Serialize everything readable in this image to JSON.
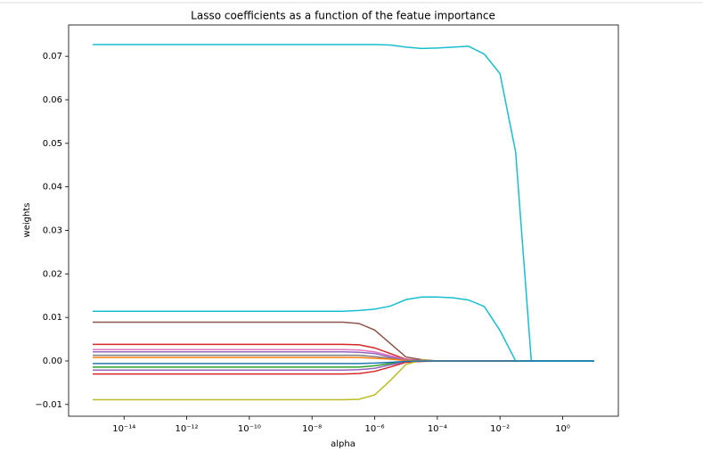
{
  "chart_data": {
    "type": "line",
    "title": "Lasso coefficients as a function of the featue importance",
    "x_label": "alpha",
    "y_label": "weights",
    "xscale": "log",
    "x": [
      1e-15,
      3.16e-15,
      1e-14,
      3.16e-14,
      1e-13,
      3.16e-13,
      1e-12,
      3.16e-12,
      1e-11,
      3.16e-11,
      1e-10,
      3.16e-10,
      1e-09,
      3.16e-09,
      1e-08,
      3.16e-08,
      1e-07,
      3.16e-07,
      1e-06,
      3.16e-06,
      1e-05,
      3.16e-05,
      0.0001,
      0.000316,
      0.001,
      0.00316,
      0.01,
      0.0316,
      0.1,
      0.316,
      1,
      3.16,
      10
    ],
    "xlim": [
      1.7e-16,
      60
    ],
    "xticks": [
      {
        "value": 1e-14,
        "label": "10⁻¹⁴"
      },
      {
        "value": 1e-12,
        "label": "10⁻¹²"
      },
      {
        "value": 1e-10,
        "label": "10⁻¹⁰"
      },
      {
        "value": 1e-08,
        "label": "10⁻⁸"
      },
      {
        "value": 1e-06,
        "label": "10⁻⁶"
      },
      {
        "value": 0.0001,
        "label": "10⁻⁴"
      },
      {
        "value": 0.01,
        "label": "10⁻²"
      },
      {
        "value": 1,
        "label": "10⁰"
      }
    ],
    "ylim": [
      -0.0127,
      0.0772
    ],
    "yticks": [
      {
        "value": -0.01,
        "label": "−0.01"
      },
      {
        "value": 0,
        "label": "0.00"
      },
      0.01,
      0.02,
      0.03,
      0.04,
      0.05,
      0.06,
      0.07
    ],
    "series": [
      {
        "color": "#8c564b",
        "values": [
          0.0089,
          0.0089,
          0.0089,
          0.0089,
          0.0089,
          0.0089,
          0.0089,
          0.0089,
          0.0089,
          0.0089,
          0.0089,
          0.0089,
          0.0089,
          0.0089,
          0.0089,
          0.0089,
          0.0089,
          0.0086,
          0.0071,
          0.004,
          0.0009,
          0.0003,
          0,
          0,
          0,
          0,
          0,
          0,
          0,
          0,
          0,
          0,
          0
        ]
      },
      {
        "color": "#d62728",
        "values": [
          0.0038,
          0.0038,
          0.0038,
          0.0038,
          0.0038,
          0.0038,
          0.0038,
          0.0038,
          0.0038,
          0.0038,
          0.0038,
          0.0038,
          0.0038,
          0.0038,
          0.0038,
          0.0038,
          0.0038,
          0.0037,
          0.003,
          0.0017,
          0.0004,
          0.0001,
          0,
          0,
          0,
          0,
          0,
          0,
          0,
          0,
          0,
          0,
          0
        ]
      },
      {
        "color": "#e377c2",
        "values": [
          0.0026,
          0.0026,
          0.0026,
          0.0026,
          0.0026,
          0.0026,
          0.0026,
          0.0026,
          0.0026,
          0.0026,
          0.0026,
          0.0026,
          0.0026,
          0.0026,
          0.0026,
          0.0026,
          0.0026,
          0.0025,
          0.0021,
          0.0012,
          0.0003,
          0.0001,
          0,
          0,
          0,
          0,
          0,
          0,
          0,
          0,
          0,
          0,
          0
        ]
      },
      {
        "color": "#9467bd",
        "values": [
          0.0021,
          0.0021,
          0.0021,
          0.0021,
          0.0021,
          0.0021,
          0.0021,
          0.0021,
          0.0021,
          0.0021,
          0.0021,
          0.0021,
          0.0021,
          0.0021,
          0.0021,
          0.0021,
          0.0021,
          0.002,
          0.0017,
          0.0009,
          0.0002,
          0.0001,
          0,
          0,
          0,
          0,
          0,
          0,
          0,
          0,
          0,
          0,
          0
        ]
      },
      {
        "color": "#7f7f7f",
        "values": [
          0.0013,
          0.0013,
          0.0013,
          0.0013,
          0.0013,
          0.0013,
          0.0013,
          0.0013,
          0.0013,
          0.0013,
          0.0013,
          0.0013,
          0.0013,
          0.0013,
          0.0013,
          0.0013,
          0.0013,
          0.0013,
          0.001,
          0.0006,
          0.0001,
          0,
          0,
          0,
          0,
          0,
          0,
          0,
          0,
          0,
          0,
          0,
          0
        ]
      },
      {
        "color": "#ff7f0e",
        "values": [
          0.0008,
          0.0008,
          0.0008,
          0.0008,
          0.0008,
          0.0008,
          0.0008,
          0.0008,
          0.0008,
          0.0008,
          0.0008,
          0.0008,
          0.0008,
          0.0008,
          0.0008,
          0.0008,
          0.0008,
          0.0008,
          0.0006,
          0.0004,
          0.0001,
          0,
          0,
          0,
          0,
          0,
          0,
          0,
          0,
          0,
          0,
          0,
          0
        ]
      },
      {
        "color": "#2ca02c",
        "values": [
          -0.0014,
          -0.0014,
          -0.0014,
          -0.0014,
          -0.0014,
          -0.0014,
          -0.0014,
          -0.0014,
          -0.0014,
          -0.0014,
          -0.0014,
          -0.0014,
          -0.0014,
          -0.0014,
          -0.0014,
          -0.0014,
          -0.0014,
          -0.0014,
          -0.0011,
          -0.0006,
          -0.0001,
          0,
          0,
          0,
          0,
          0,
          0,
          0,
          0,
          0,
          0,
          0,
          0
        ]
      },
      {
        "color": "#9467bd",
        "values": [
          -0.0021,
          -0.0021,
          -0.0021,
          -0.0021,
          -0.0021,
          -0.0021,
          -0.0021,
          -0.0021,
          -0.0021,
          -0.0021,
          -0.0021,
          -0.0021,
          -0.0021,
          -0.0021,
          -0.0021,
          -0.0021,
          -0.0021,
          -0.002,
          -0.0017,
          -0.0009,
          -0.0002,
          0,
          0,
          0,
          0,
          0,
          0,
          0,
          0,
          0,
          0,
          0,
          0
        ]
      },
      {
        "color": "#d62728",
        "values": [
          -0.003,
          -0.003,
          -0.003,
          -0.003,
          -0.003,
          -0.003,
          -0.003,
          -0.003,
          -0.003,
          -0.003,
          -0.003,
          -0.003,
          -0.003,
          -0.003,
          -0.003,
          -0.003,
          -0.003,
          -0.0029,
          -0.0024,
          -0.0014,
          -0.0003,
          -0.0001,
          0,
          0,
          0,
          0,
          0,
          0,
          0,
          0,
          0,
          0,
          0
        ]
      },
      {
        "color": "#bcbd22",
        "values": [
          -0.0089,
          -0.0089,
          -0.0089,
          -0.0089,
          -0.0089,
          -0.0089,
          -0.0089,
          -0.0089,
          -0.0089,
          -0.0089,
          -0.0089,
          -0.0089,
          -0.0089,
          -0.0089,
          -0.0089,
          -0.0089,
          -0.0089,
          -0.0088,
          -0.0078,
          -0.0045,
          -0.0008,
          0.0002,
          0,
          0,
          0,
          0,
          0,
          0,
          0,
          0,
          0,
          0,
          0
        ]
      },
      {
        "color": "#17becf",
        "values": [
          0.0727,
          0.0727,
          0.0727,
          0.0727,
          0.0727,
          0.0727,
          0.0727,
          0.0727,
          0.0727,
          0.0727,
          0.0727,
          0.0727,
          0.0727,
          0.0727,
          0.0727,
          0.0727,
          0.0727,
          0.0727,
          0.0727,
          0.0726,
          0.0721,
          0.0718,
          0.0719,
          0.0721,
          0.0723,
          0.0705,
          0.066,
          0.048,
          0,
          0,
          0,
          0,
          0
        ]
      },
      {
        "color": "#17becf",
        "values": [
          0.0114,
          0.0114,
          0.0114,
          0.0114,
          0.0114,
          0.0114,
          0.0114,
          0.0114,
          0.0114,
          0.0114,
          0.0114,
          0.0114,
          0.0114,
          0.0114,
          0.0114,
          0.0114,
          0.0114,
          0.0116,
          0.0119,
          0.0126,
          0.0141,
          0.0147,
          0.0147,
          0.0145,
          0.014,
          0.0125,
          0.007,
          0,
          0,
          0,
          0,
          0,
          0
        ]
      },
      {
        "color": "#1f77b4",
        "values": [
          -0.0006,
          -0.0006,
          -0.0006,
          -0.0006,
          -0.0006,
          -0.0006,
          -0.0006,
          -0.0006,
          -0.0006,
          -0.0006,
          -0.0006,
          -0.0006,
          -0.0006,
          -0.0006,
          -0.0006,
          -0.0006,
          -0.0006,
          -0.0006,
          -0.0005,
          -0.0003,
          -0.0001,
          0,
          0,
          0,
          0,
          0,
          0,
          0,
          0,
          0,
          0,
          0,
          0
        ]
      }
    ]
  }
}
